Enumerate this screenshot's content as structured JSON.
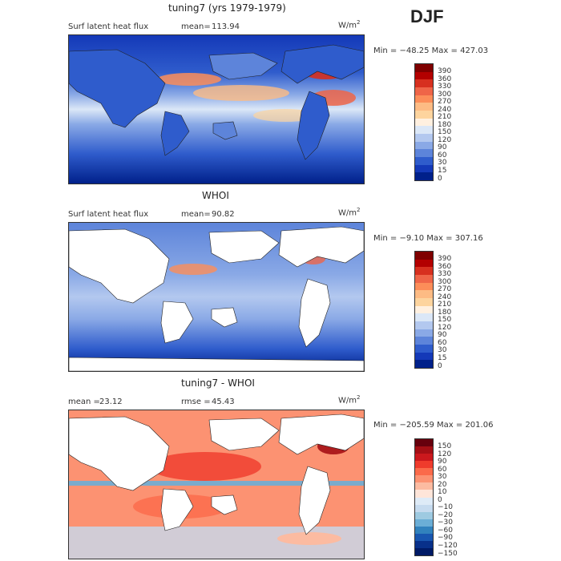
{
  "season": "DJF",
  "panels": [
    {
      "title": "tuning7 (yrs 1979-1979)",
      "left_label": "Surf latent heat flux",
      "stat_label": "mean=",
      "stat_value": "113.94",
      "unit_base": "W/m",
      "unit_exp": "2",
      "minmax": "Min = −48.25 Max = 427.03",
      "colorbar": {
        "labels": [
          "390",
          "360",
          "330",
          "300",
          "270",
          "240",
          "210",
          "180",
          "150",
          "120",
          "90",
          "60",
          "30",
          "15",
          "0"
        ],
        "colors": [
          "#7f0000",
          "#b30000",
          "#d7301f",
          "#ef6548",
          "#fc8d59",
          "#fdbb84",
          "#fdd49e",
          "#fff0e0",
          "#dbe7f7",
          "#b3c8ef",
          "#8aa9e6",
          "#5d84da",
          "#2f5ccc",
          "#1439b8",
          "#00208a"
        ]
      }
    },
    {
      "title": "WHOI",
      "left_label": "Surf latent heat flux",
      "stat_label": "mean=",
      "stat_value": "90.82",
      "unit_base": "W/m",
      "unit_exp": "2",
      "minmax": "Min = −9.10 Max = 307.16",
      "colorbar": {
        "labels": [
          "390",
          "360",
          "330",
          "300",
          "270",
          "240",
          "210",
          "180",
          "150",
          "120",
          "90",
          "60",
          "30",
          "15",
          "0"
        ],
        "colors": [
          "#7f0000",
          "#b30000",
          "#d7301f",
          "#ef6548",
          "#fc8d59",
          "#fdbb84",
          "#fdd49e",
          "#fff0e0",
          "#dbe7f7",
          "#b3c8ef",
          "#8aa9e6",
          "#5d84da",
          "#2f5ccc",
          "#1439b8",
          "#00208a"
        ]
      }
    },
    {
      "title": "tuning7 - WHOI",
      "left_label": "mean =",
      "left_value": "23.12",
      "stat_label": "rmse =",
      "stat_value": "45.43",
      "unit_base": "W/m",
      "unit_exp": "2",
      "minmax": "Min = −205.59 Max = 201.06",
      "colorbar": {
        "labels": [
          "150",
          "120",
          "90",
          "60",
          "30",
          "20",
          "10",
          "0",
          "−10",
          "−20",
          "−30",
          "−60",
          "−90",
          "−120",
          "−150"
        ],
        "colors": [
          "#67000d",
          "#a50f15",
          "#cb181d",
          "#ef3b2c",
          "#fb6a4a",
          "#fc9272",
          "#fcbba1",
          "#fee5d9",
          "#deebf7",
          "#c6dbef",
          "#9ecae1",
          "#6baed6",
          "#3182bd",
          "#1856b0",
          "#08308a",
          "#001a66"
        ]
      }
    }
  ],
  "map_colors": {
    "ocean_low": "#1439b8",
    "ocean_mid": "#5d84da",
    "ocean_high": "#ef6548",
    "land": "#ffffff",
    "diff_pos": "#fb6a4a",
    "diff_neg": "#3182bd"
  }
}
